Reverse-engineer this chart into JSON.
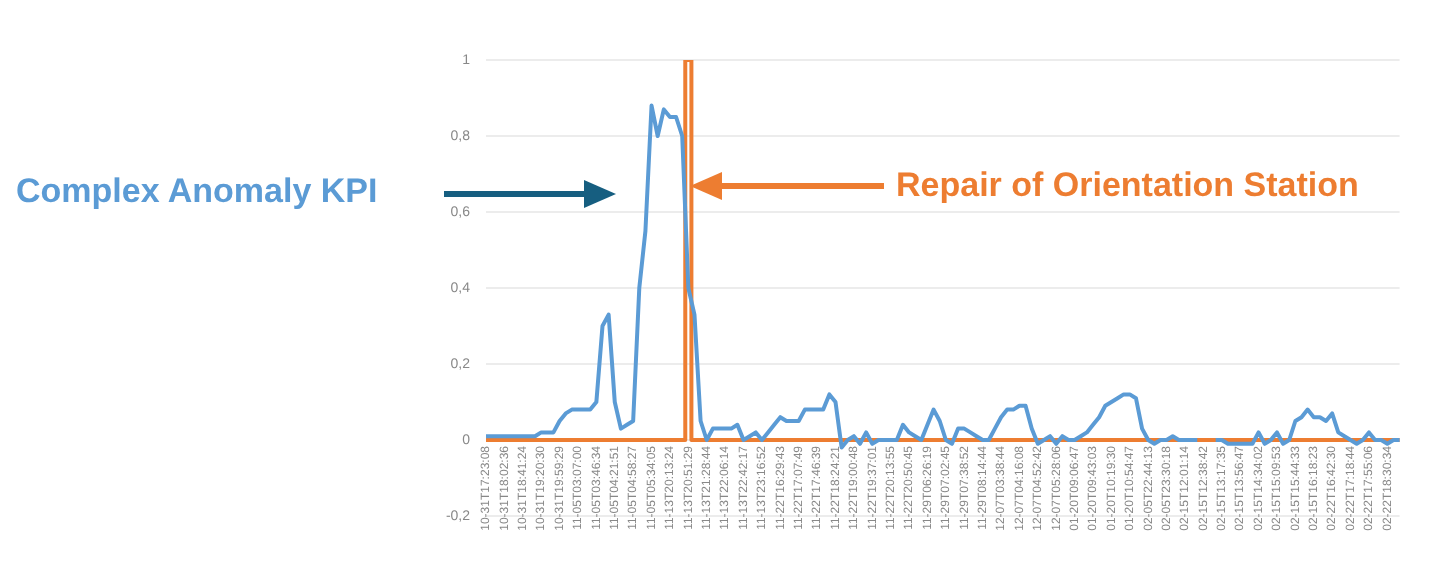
{
  "chart_data": {
    "type": "line",
    "categories": [
      "10-31T17:23:08",
      null,
      null,
      "10-31T18:02:36",
      null,
      null,
      "10-31T18:41:24",
      null,
      null,
      "10-31T19:20:30",
      null,
      null,
      "10-31T19:59:29",
      null,
      null,
      "11-05T03:07:00",
      null,
      null,
      "11-05T03:46:34",
      null,
      null,
      "11-05T04:21:51",
      null,
      null,
      "11-05T04:58:27",
      null,
      null,
      "11-05T05:34:05",
      null,
      null,
      "11-13T20:13:24",
      null,
      null,
      "11-13T20:51:29",
      null,
      null,
      "11-13T21:28:44",
      null,
      null,
      "11-13T22:06:14",
      null,
      null,
      "11-13T22:42:17",
      null,
      null,
      "11-13T23:16:52",
      null,
      null,
      "11-22T16:29:43",
      null,
      null,
      "11-22T17:07:49",
      null,
      null,
      "11-22T17:46:39",
      null,
      null,
      "11-22T18:24:21",
      null,
      null,
      "11-22T19:00:48",
      null,
      null,
      "11-22T19:37:01",
      null,
      null,
      "11-22T20:13:55",
      null,
      null,
      "11-22T20:50:45",
      null,
      null,
      "11-29T06:26:19",
      null,
      null,
      "11-29T07:02:45",
      null,
      null,
      "11-29T07:38:52",
      null,
      null,
      "11-29T08:14:44",
      null,
      null,
      "12-07T03:38:44",
      null,
      null,
      "12-07T04:16:08",
      null,
      null,
      "12-07T04:52:42",
      null,
      null,
      "12-07T05:28:06",
      null,
      null,
      "01-20T09:06:47",
      null,
      null,
      "01-20T09:43:03",
      null,
      null,
      "01-20T10:19:30",
      null,
      null,
      "01-20T10:54:47",
      null,
      null,
      "02-05T22:44:13",
      null,
      null,
      "02-05T23:30:18",
      null,
      null,
      "02-15T12:01:14",
      null,
      null,
      "02-15T12:38:42",
      null,
      null,
      "02-15T13:17:35",
      null,
      null,
      "02-15T13:56:47",
      null,
      null,
      "02-15T14:34:02",
      null,
      null,
      "02-15T15:09:53",
      null,
      null,
      "02-15T15:44:33",
      null,
      null,
      "02-15T16:18:23",
      null,
      null,
      "02-22T16:42:30",
      null,
      null,
      "02-22T17:18:44",
      null,
      null,
      "02-22T17:55:06",
      null,
      null,
      "02-22T18:30:34",
      null,
      null
    ],
    "series": [
      {
        "name": "Complex Anomaly KPI",
        "color": "#5b9bd5",
        "values": [
          0.01,
          0.01,
          0.01,
          0.01,
          0.01,
          0.01,
          0.01,
          0.01,
          0.01,
          0.02,
          0.02,
          0.02,
          0.05,
          0.07,
          0.08,
          0.08,
          0.08,
          0.08,
          0.1,
          0.3,
          0.33,
          0.1,
          0.03,
          0.04,
          0.05,
          0.4,
          0.55,
          0.88,
          0.8,
          0.87,
          0.85,
          0.85,
          0.8,
          0.4,
          0.33,
          0.05,
          0.0,
          0.03,
          0.03,
          0.03,
          0.03,
          0.04,
          0.0,
          0.01,
          0.02,
          0.0,
          0.02,
          0.04,
          0.06,
          0.05,
          0.05,
          0.05,
          0.08,
          0.08,
          0.08,
          0.08,
          0.12,
          0.1,
          -0.02,
          0.0,
          0.01,
          -0.01,
          0.02,
          -0.01,
          0.0,
          0.0,
          0.0,
          0.0,
          0.04,
          0.02,
          0.01,
          0.0,
          0.04,
          0.08,
          0.05,
          0.0,
          -0.01,
          0.03,
          0.03,
          0.02,
          0.01,
          0.0,
          0.0,
          0.03,
          0.06,
          0.08,
          0.08,
          0.09,
          0.09,
          0.03,
          -0.01,
          0.0,
          0.01,
          -0.01,
          0.01,
          0.0,
          0.0,
          0.01,
          0.02,
          0.04,
          0.06,
          0.09,
          0.1,
          0.11,
          0.12,
          0.12,
          0.11,
          0.03,
          0.0,
          -0.01,
          0.0,
          0.0,
          0.01,
          0.0,
          0.0,
          0.0,
          0.0,
          null,
          null,
          0.0,
          0.0,
          -0.01,
          -0.01,
          -0.01,
          -0.01,
          -0.01,
          0.02,
          -0.01,
          0.0,
          0.02,
          -0.01,
          0.0,
          0.05,
          0.06,
          0.08,
          0.06,
          0.06,
          0.05,
          0.07,
          0.02,
          0.01,
          0.0,
          -0.01,
          0.0,
          0.02,
          0.0,
          0.0,
          -0.01,
          0.0,
          0.0
        ]
      },
      {
        "name": "Repair of Orientation Station",
        "color": "#ed7d31",
        "type": "step",
        "values": [
          0,
          0,
          0,
          0,
          0,
          0,
          0,
          0,
          0,
          0,
          0,
          0,
          0,
          0,
          0,
          0,
          0,
          0,
          0,
          0,
          0,
          0,
          0,
          0,
          0,
          0,
          0,
          0,
          0,
          0,
          0,
          0,
          0,
          1,
          0,
          0,
          0,
          0,
          0,
          0,
          0,
          0,
          0,
          0,
          0,
          0,
          0,
          0,
          0,
          0,
          0,
          0,
          0,
          0,
          0,
          0,
          0,
          0,
          0,
          0,
          0,
          0,
          0,
          0,
          0,
          0,
          0,
          0,
          0,
          0,
          0,
          0,
          0,
          0,
          0,
          0,
          0,
          0,
          0,
          0,
          0,
          0,
          0,
          0,
          0,
          0,
          0,
          0,
          0,
          0,
          0,
          0,
          0,
          0,
          0,
          0,
          0,
          0,
          0,
          0,
          0,
          0,
          0,
          0,
          0,
          0,
          0,
          0,
          0,
          0,
          0,
          0,
          0,
          0,
          0,
          0,
          0,
          0,
          0,
          0,
          0,
          0,
          0,
          0,
          0,
          0,
          0,
          0,
          0,
          0,
          0,
          0,
          0,
          0,
          0,
          0,
          0,
          0,
          0,
          0,
          0,
          0,
          0,
          0,
          0,
          0,
          0,
          0,
          0,
          0
        ]
      }
    ],
    "ylim": [
      -0.2,
      1
    ],
    "yticks": [
      {
        "value": -0.2,
        "label": "-0,2"
      },
      0,
      {
        "value": 0.2,
        "label": "0,2"
      },
      {
        "value": 0.4,
        "label": "0,4"
      },
      {
        "value": 0.6,
        "label": "0,6"
      },
      {
        "value": 0.8,
        "label": "0,8"
      },
      1
    ],
    "grid": "y",
    "legend": "right",
    "marker": "none",
    "line_style": "solid"
  }
}
